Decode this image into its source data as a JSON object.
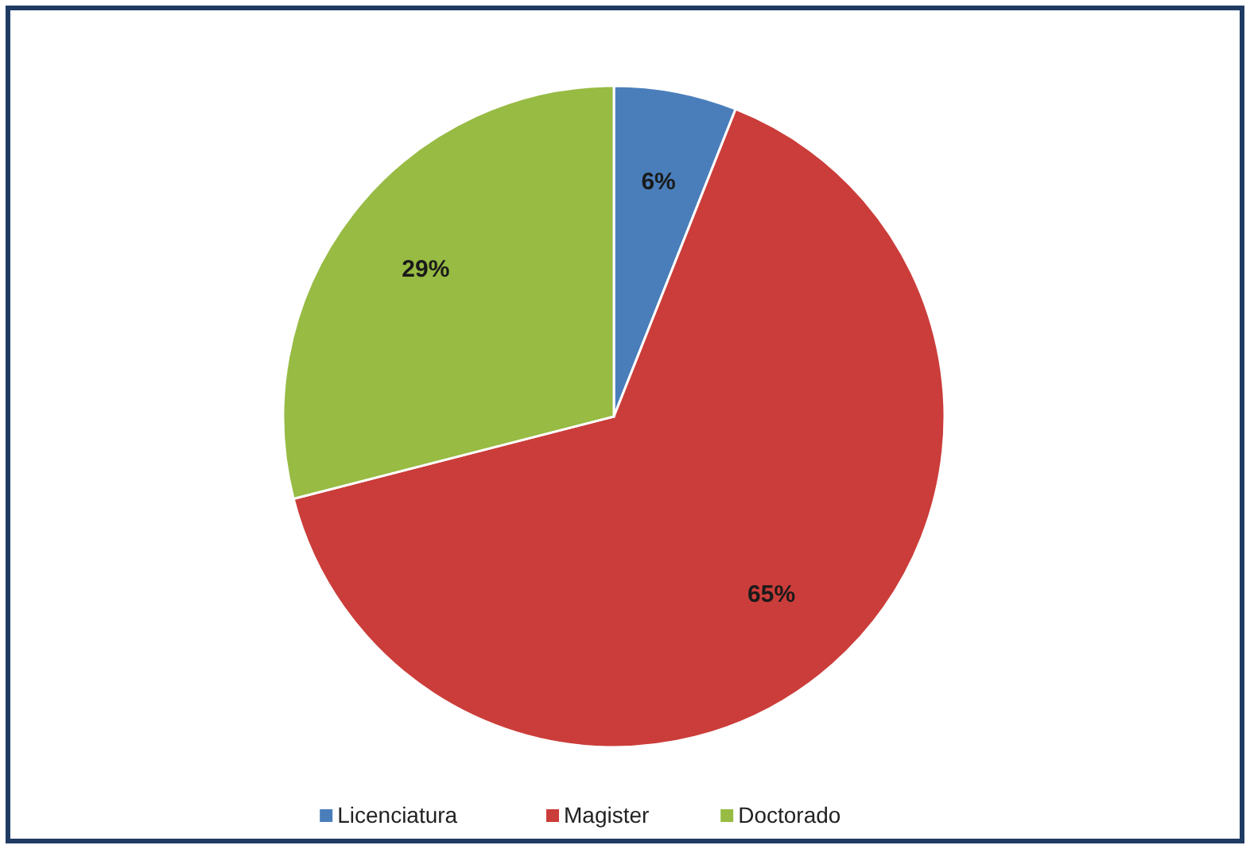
{
  "chart_data": {
    "type": "pie",
    "categories": [
      "Licenciatura",
      "Magister",
      "Doctorado"
    ],
    "values": [
      6,
      65,
      29
    ],
    "colors": [
      "#4a7ebb",
      "#cb3d3a",
      "#97bb43"
    ],
    "value_labels": [
      "6%",
      "65%",
      "29%"
    ],
    "legend": "bottom"
  }
}
